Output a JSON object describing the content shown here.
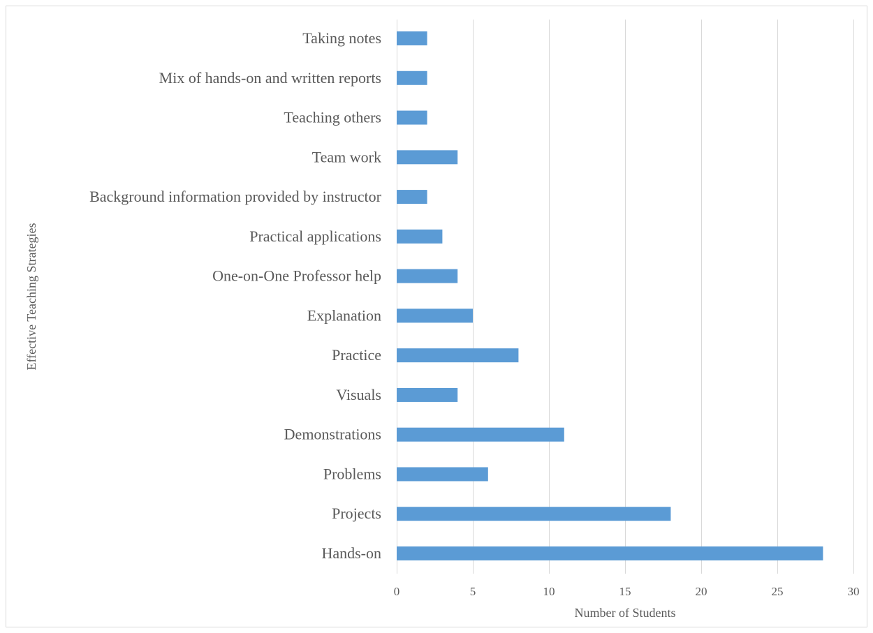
{
  "chart_data": {
    "type": "bar",
    "orientation": "horizontal",
    "title": "",
    "xlabel": "Number of Students",
    "ylabel": "Effective Teaching Strategies",
    "categories": [
      "Taking notes",
      "Mix of hands-on and written reports",
      "Teaching others",
      "Team work",
      "Background information provided by instructor",
      "Practical applications",
      "One-on-One Professor help",
      "Explanation",
      "Practice",
      "Visuals",
      "Demonstrations",
      "Problems",
      "Projects",
      "Hands-on"
    ],
    "values": [
      2,
      2,
      2,
      4,
      2,
      3,
      4,
      5,
      8,
      4,
      11,
      6,
      18,
      28
    ],
    "xlim": [
      0,
      30
    ],
    "xticks": [
      0,
      5,
      10,
      15,
      20,
      25,
      30
    ],
    "grid": "vertical",
    "bar_color": "#5b9bd5",
    "grid_color": "#d9d9d9",
    "legend": "none"
  }
}
